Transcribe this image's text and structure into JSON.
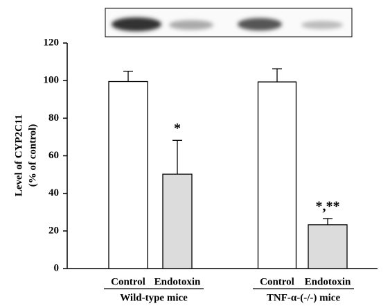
{
  "chart_data": {
    "type": "bar",
    "y_label": [
      "Level of CYP2C11",
      "(% of control)"
    ],
    "categories": [
      "Control",
      "Endotoxin",
      "Control",
      "Endotoxin"
    ],
    "groups": [
      "Wild-type mice",
      "TNF-α-(-/-) mice"
    ],
    "values": [
      99.5,
      50.2,
      99.3,
      23.3
    ],
    "errors": [
      5.5,
      18,
      7,
      3.3
    ],
    "colors": [
      "#ffffff",
      "#dcdcdc",
      "#ffffff",
      "#dcdcdc"
    ],
    "value_annotations": [
      null,
      "*",
      null,
      "*,**"
    ],
    "ylim": [
      0,
      120
    ],
    "yticks": [
      0,
      20,
      40,
      60,
      80,
      100,
      120
    ]
  }
}
